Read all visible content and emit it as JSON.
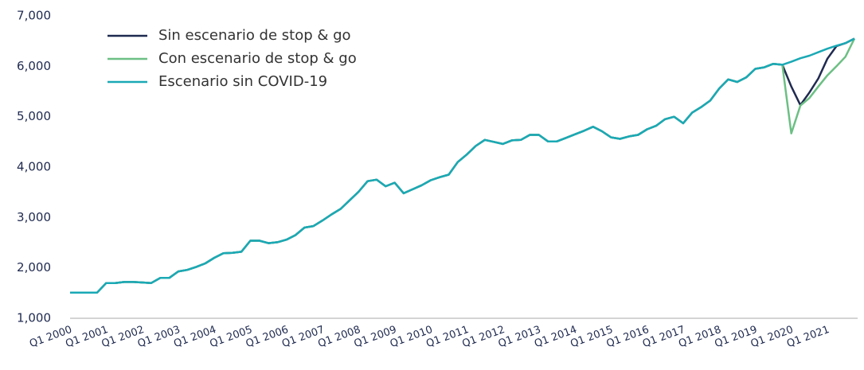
{
  "chart_data": {
    "type": "line",
    "categories": [
      "Q1 2000",
      null,
      null,
      null,
      "Q1 2001",
      null,
      null,
      null,
      "Q1 2002",
      null,
      null,
      null,
      "Q1 2003",
      null,
      null,
      null,
      "Q1 2004",
      null,
      null,
      null,
      "Q1 2005",
      null,
      null,
      null,
      "Q1 2006",
      null,
      null,
      null,
      "Q1 2007",
      null,
      null,
      null,
      "Q1 2008",
      null,
      null,
      null,
      "Q1 2009",
      null,
      null,
      null,
      "Q1 2010",
      null,
      null,
      null,
      "Q1 2011",
      null,
      null,
      null,
      "Q1 2012",
      null,
      null,
      null,
      "Q1 2013",
      null,
      null,
      null,
      "Q1 2014",
      null,
      null,
      null,
      "Q1 2015",
      null,
      null,
      null,
      "Q1 2016",
      null,
      null,
      null,
      "Q1 2017",
      null,
      null,
      null,
      "Q1 2018",
      null,
      null,
      null,
      "Q1 2019",
      null,
      null,
      null,
      "Q1 2020",
      null,
      null,
      null,
      "Q1 2021",
      null,
      null,
      null
    ],
    "series": [
      {
        "name": "Sin escenario de stop & go",
        "color": "#1f2a50",
        "values": [
          1510,
          1510,
          1510,
          1510,
          1700,
          1700,
          1720,
          1720,
          1710,
          1700,
          1800,
          1800,
          1930,
          1960,
          2020,
          2090,
          2200,
          2290,
          2300,
          2320,
          2540,
          2540,
          2490,
          2510,
          2560,
          2650,
          2800,
          2830,
          2940,
          3060,
          3170,
          3340,
          3510,
          3720,
          3750,
          3620,
          3690,
          3480,
          3560,
          3640,
          3740,
          3800,
          3850,
          4100,
          4250,
          4420,
          4540,
          4500,
          4460,
          4530,
          4540,
          4640,
          4640,
          4510,
          4510,
          4580,
          4650,
          4720,
          4800,
          4710,
          4590,
          4560,
          4610,
          4640,
          4750,
          4820,
          4950,
          5000,
          4870,
          5080,
          5190,
          5320,
          5560,
          5740,
          5690,
          5780,
          5950,
          5980,
          6050,
          6030,
          5600,
          5230,
          5480,
          5760,
          6150,
          6400,
          6460,
          6550
        ]
      },
      {
        "name": "Con escenario de stop & go",
        "color": "#6cbf84",
        "values": [
          1510,
          1510,
          1510,
          1510,
          1700,
          1700,
          1720,
          1720,
          1710,
          1700,
          1800,
          1800,
          1930,
          1960,
          2020,
          2090,
          2200,
          2290,
          2300,
          2320,
          2540,
          2540,
          2490,
          2510,
          2560,
          2650,
          2800,
          2830,
          2940,
          3060,
          3170,
          3340,
          3510,
          3720,
          3750,
          3620,
          3690,
          3480,
          3560,
          3640,
          3740,
          3800,
          3850,
          4100,
          4250,
          4420,
          4540,
          4500,
          4460,
          4530,
          4540,
          4640,
          4640,
          4510,
          4510,
          4580,
          4650,
          4720,
          4800,
          4710,
          4590,
          4560,
          4610,
          4640,
          4750,
          4820,
          4950,
          5000,
          4870,
          5080,
          5190,
          5320,
          5560,
          5740,
          5690,
          5780,
          5950,
          5980,
          6050,
          6030,
          4670,
          5220,
          5370,
          5600,
          5820,
          6000,
          6190,
          6550
        ]
      },
      {
        "name": "Escenario sin COVID-19",
        "color": "#1aa9b5",
        "values": [
          1510,
          1510,
          1510,
          1510,
          1700,
          1700,
          1720,
          1720,
          1710,
          1700,
          1800,
          1800,
          1930,
          1960,
          2020,
          2090,
          2200,
          2290,
          2300,
          2320,
          2540,
          2540,
          2490,
          2510,
          2560,
          2650,
          2800,
          2830,
          2940,
          3060,
          3170,
          3340,
          3510,
          3720,
          3750,
          3620,
          3690,
          3480,
          3560,
          3640,
          3740,
          3800,
          3850,
          4100,
          4250,
          4420,
          4540,
          4500,
          4460,
          4530,
          4540,
          4640,
          4640,
          4510,
          4510,
          4580,
          4650,
          4720,
          4800,
          4710,
          4590,
          4560,
          4610,
          4640,
          4750,
          4820,
          4950,
          5000,
          4870,
          5080,
          5190,
          5320,
          5560,
          5740,
          5690,
          5780,
          5950,
          5980,
          6050,
          6030,
          6090,
          6160,
          6210,
          6280,
          6350,
          6410,
          6460,
          6550
        ]
      }
    ],
    "ylim": [
      1000,
      7000
    ],
    "yticks": [
      {
        "value": 1000,
        "label": "1,000"
      },
      {
        "value": 2000,
        "label": "2,000"
      },
      {
        "value": 3000,
        "label": "3,000"
      },
      {
        "value": 4000,
        "label": "4,000"
      },
      {
        "value": 5000,
        "label": "5,000"
      },
      {
        "value": 6000,
        "label": "6,000"
      },
      {
        "value": 7000,
        "label": "7,000"
      }
    ],
    "grid": false,
    "legend": "upper left"
  }
}
